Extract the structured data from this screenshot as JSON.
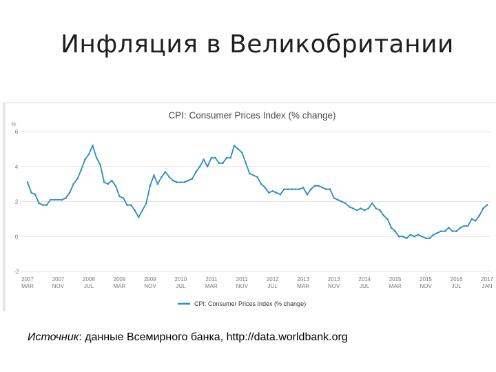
{
  "slide": {
    "title": "Инфляция в Великобритании",
    "source_label": "Источник",
    "source_text": ": данные Всемирного банка, http://data.worldbank.org"
  },
  "chart_data": {
    "type": "line",
    "title": "CPI: Consumer Prices Index (% change)",
    "ylabel": "%",
    "ylim": [
      -2,
      6
    ],
    "yticks": [
      -2,
      0,
      2,
      4,
      6
    ],
    "grid": true,
    "legend_position": "bottom-center",
    "series_color": "#2a8cc4",
    "x_tick_labels": [
      [
        "2007",
        "MAR"
      ],
      [
        "2007",
        "NOV"
      ],
      [
        "2008",
        "JUL"
      ],
      [
        "2009",
        "MAR"
      ],
      [
        "2009",
        "NOV"
      ],
      [
        "2010",
        "JUL"
      ],
      [
        "2011",
        "MAR"
      ],
      [
        "2011",
        "NOV"
      ],
      [
        "2012",
        "JUL"
      ],
      [
        "2013",
        "MAR"
      ],
      [
        "2013",
        "NOV"
      ],
      [
        "2014",
        "JUL"
      ],
      [
        "2015",
        "MAR"
      ],
      [
        "2015",
        "NOV"
      ],
      [
        "2016",
        "JUL"
      ],
      [
        "2017",
        "JAN"
      ]
    ],
    "series": [
      {
        "name": "CPI: Consumer Prices Index (% change)",
        "x_start": "2007-03",
        "values": [
          3.1,
          2.5,
          2.4,
          1.9,
          1.8,
          1.8,
          2.1,
          2.1,
          2.1,
          2.1,
          2.2,
          2.5,
          3.0,
          3.3,
          3.8,
          4.4,
          4.7,
          5.2,
          4.5,
          4.1,
          3.1,
          3.0,
          3.2,
          2.9,
          2.3,
          2.2,
          1.8,
          1.8,
          1.5,
          1.1,
          1.5,
          1.9,
          2.9,
          3.5,
          3.0,
          3.4,
          3.7,
          3.4,
          3.2,
          3.1,
          3.1,
          3.1,
          3.2,
          3.3,
          3.7,
          4.0,
          4.4,
          4.0,
          4.5,
          4.5,
          4.2,
          4.2,
          4.5,
          4.5,
          5.2,
          5.0,
          4.8,
          4.2,
          3.6,
          3.5,
          3.4,
          3.0,
          2.8,
          2.5,
          2.6,
          2.5,
          2.4,
          2.7,
          2.7,
          2.7,
          2.7,
          2.7,
          2.8,
          2.4,
          2.7,
          2.9,
          2.9,
          2.8,
          2.7,
          2.7,
          2.2,
          2.1,
          2.0,
          1.9,
          1.7,
          1.6,
          1.5,
          1.6,
          1.5,
          1.6,
          1.9,
          1.6,
          1.5,
          1.2,
          1.0,
          0.5,
          0.3,
          0.0,
          0.0,
          -0.1,
          0.1,
          0.0,
          0.1,
          0.0,
          -0.1,
          -0.1,
          0.1,
          0.2,
          0.3,
          0.3,
          0.5,
          0.3,
          0.3,
          0.5,
          0.6,
          0.6,
          1.0,
          0.9,
          1.2,
          1.6,
          1.8
        ]
      }
    ]
  }
}
